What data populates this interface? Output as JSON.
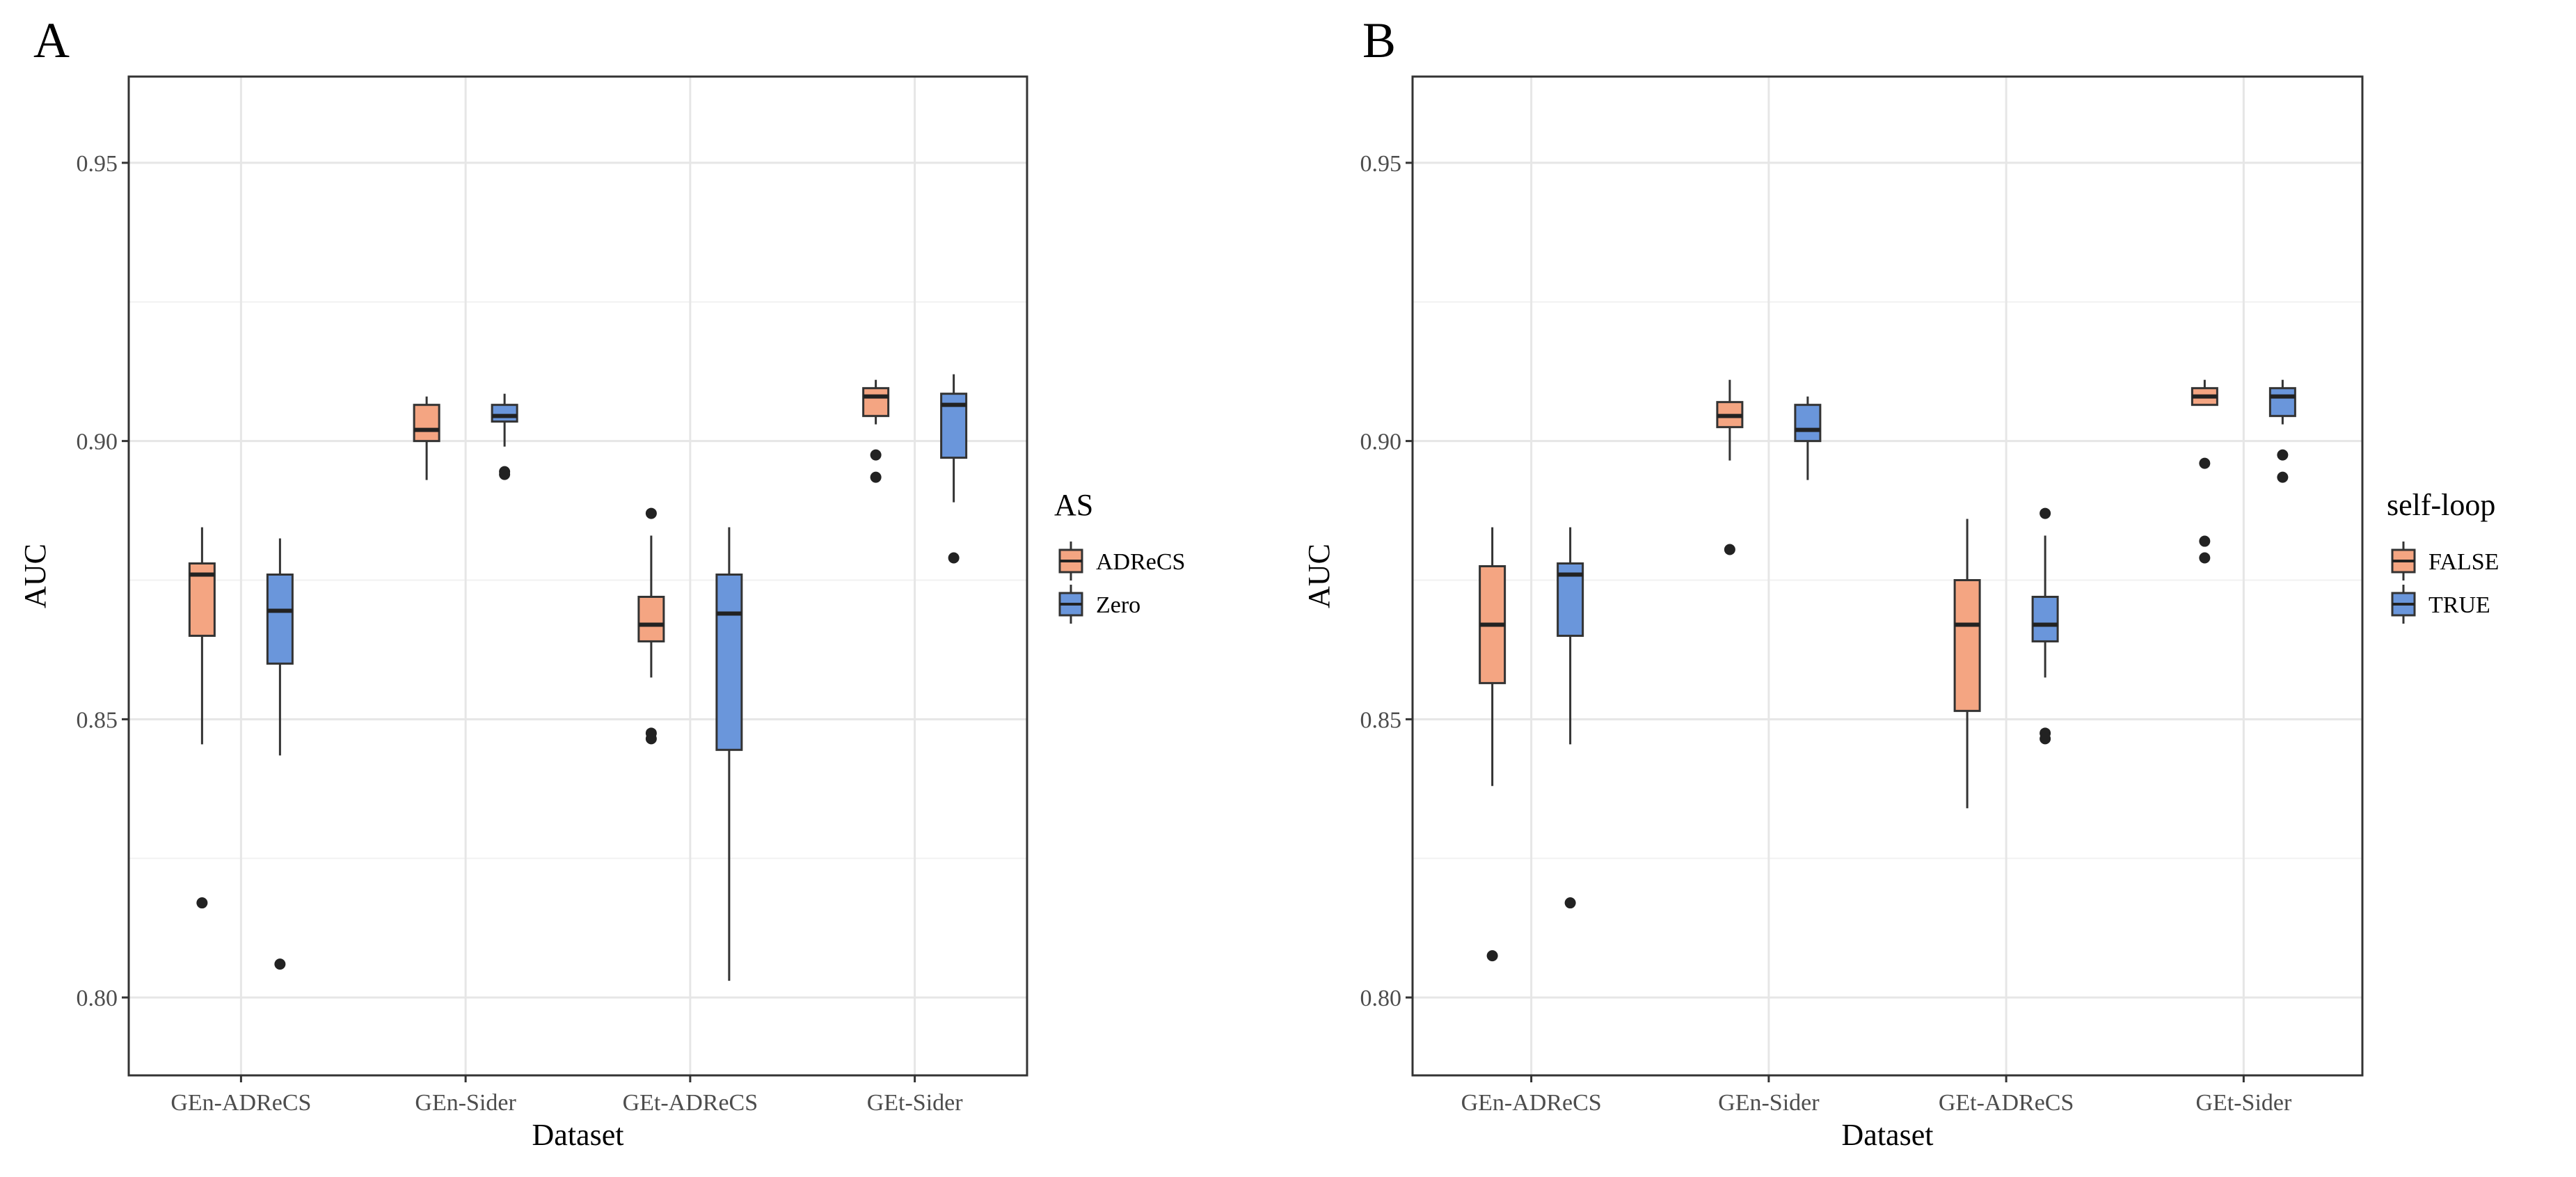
{
  "chart_data": [
    {
      "type": "boxplot",
      "panel_label": "A",
      "xlabel": "Dataset",
      "ylabel": "AUC",
      "ylim": [
        0.786,
        0.9655
      ],
      "yticks": [
        0.8,
        0.85,
        0.9,
        0.95
      ],
      "ytick_labels": [
        "0.80",
        "0.85",
        "0.90",
        "0.95"
      ],
      "grid": true,
      "categories": [
        "GEn-ADReCS",
        "GEn-Sider",
        "GEt-ADReCS",
        "GEt-Sider"
      ],
      "legend": {
        "title": "AS",
        "position": "right"
      },
      "series": [
        {
          "name": "ADReCS",
          "color": "#F4A582",
          "boxes": [
            {
              "whisker_low": 0.8455,
              "q1": 0.865,
              "median": 0.876,
              "q3": 0.878,
              "whisker_high": 0.8845,
              "outliers": [
                0.817
              ]
            },
            {
              "whisker_low": 0.893,
              "q1": 0.9,
              "median": 0.902,
              "q3": 0.9065,
              "whisker_high": 0.908,
              "outliers": []
            },
            {
              "whisker_low": 0.8575,
              "q1": 0.864,
              "median": 0.867,
              "q3": 0.872,
              "whisker_high": 0.883,
              "outliers": [
                0.887,
                0.8475,
                0.8465
              ]
            },
            {
              "whisker_low": 0.903,
              "q1": 0.9045,
              "median": 0.908,
              "q3": 0.9095,
              "whisker_high": 0.911,
              "outliers": [
                0.8975,
                0.8935
              ]
            }
          ]
        },
        {
          "name": "Zero",
          "color": "#6A96DB",
          "boxes": [
            {
              "whisker_low": 0.8435,
              "q1": 0.86,
              "median": 0.8695,
              "q3": 0.876,
              "whisker_high": 0.8825,
              "outliers": [
                0.806
              ]
            },
            {
              "whisker_low": 0.899,
              "q1": 0.9035,
              "median": 0.9045,
              "q3": 0.9065,
              "whisker_high": 0.9085,
              "outliers": [
                0.8945,
                0.894
              ]
            },
            {
              "whisker_low": 0.803,
              "q1": 0.8445,
              "median": 0.869,
              "q3": 0.876,
              "whisker_high": 0.8845,
              "outliers": []
            },
            {
              "whisker_low": 0.889,
              "q1": 0.897,
              "median": 0.9065,
              "q3": 0.9085,
              "whisker_high": 0.912,
              "outliers": [
                0.879
              ]
            }
          ]
        }
      ]
    },
    {
      "type": "boxplot",
      "panel_label": "B",
      "xlabel": "Dataset",
      "ylabel": "AUC",
      "ylim": [
        0.786,
        0.9655
      ],
      "yticks": [
        0.8,
        0.85,
        0.9,
        0.95
      ],
      "ytick_labels": [
        "0.80",
        "0.85",
        "0.90",
        "0.95"
      ],
      "grid": true,
      "categories": [
        "GEn-ADReCS",
        "GEn-Sider",
        "GEt-ADReCS",
        "GEt-Sider"
      ],
      "legend": {
        "title": "self-loop",
        "position": "right"
      },
      "series": [
        {
          "name": "FALSE",
          "color": "#F4A582",
          "boxes": [
            {
              "whisker_low": 0.838,
              "q1": 0.8565,
              "median": 0.867,
              "q3": 0.8775,
              "whisker_high": 0.8845,
              "outliers": [
                0.8075
              ]
            },
            {
              "whisker_low": 0.8965,
              "q1": 0.9025,
              "median": 0.9045,
              "q3": 0.907,
              "whisker_high": 0.911,
              "outliers": [
                0.8805
              ]
            },
            {
              "whisker_low": 0.834,
              "q1": 0.8515,
              "median": 0.867,
              "q3": 0.875,
              "whisker_high": 0.886,
              "outliers": []
            },
            {
              "whisker_low": 0.9065,
              "q1": 0.9065,
              "median": 0.908,
              "q3": 0.9095,
              "whisker_high": 0.911,
              "outliers": [
                0.896,
                0.882,
                0.879
              ]
            }
          ]
        },
        {
          "name": "TRUE",
          "color": "#6A96DB",
          "boxes": [
            {
              "whisker_low": 0.8455,
              "q1": 0.865,
              "median": 0.876,
              "q3": 0.878,
              "whisker_high": 0.8845,
              "outliers": [
                0.817
              ]
            },
            {
              "whisker_low": 0.893,
              "q1": 0.9,
              "median": 0.902,
              "q3": 0.9065,
              "whisker_high": 0.908,
              "outliers": []
            },
            {
              "whisker_low": 0.8575,
              "q1": 0.864,
              "median": 0.867,
              "q3": 0.872,
              "whisker_high": 0.883,
              "outliers": [
                0.887,
                0.8475,
                0.8465
              ]
            },
            {
              "whisker_low": 0.903,
              "q1": 0.9045,
              "median": 0.908,
              "q3": 0.9095,
              "whisker_high": 0.911,
              "outliers": [
                0.8975,
                0.8935
              ]
            }
          ]
        }
      ]
    }
  ]
}
